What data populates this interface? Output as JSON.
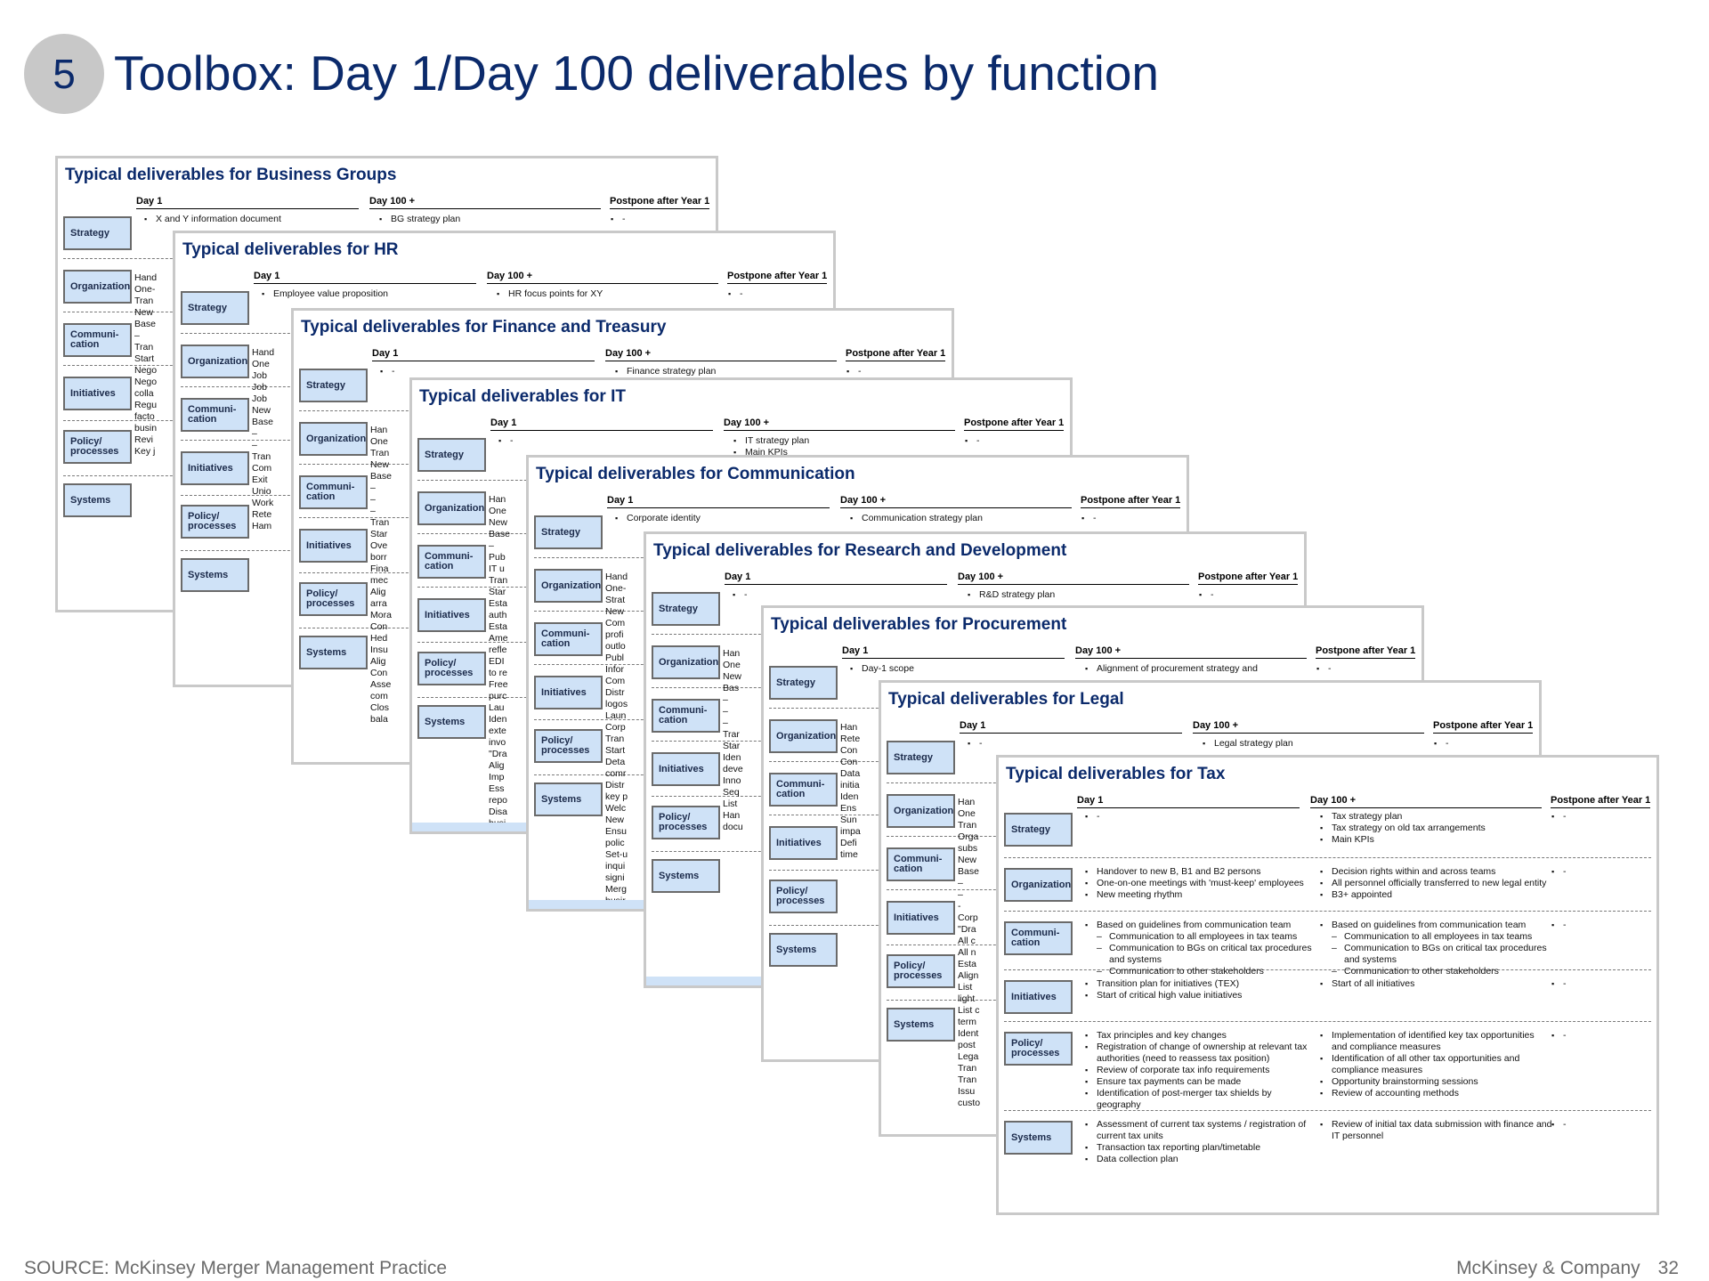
{
  "header": {
    "badge": "5",
    "title": "Toolbox: Day 1/Day 100 deliverables by function"
  },
  "columns": [
    "Day 1",
    "Day 100 +",
    "Postpone after Year 1"
  ],
  "row_labels": [
    "Strategy",
    "Organization",
    "Communi-\ncation",
    "Initiatives",
    "Policy/\nprocesses",
    "Systems"
  ],
  "sheets": [
    {
      "title": "Typical deliverables for Business Groups",
      "strategy": {
        "day1": "X and Y information document",
        "day100": "BG strategy plan",
        "year1": "-"
      },
      "stubs": [
        "Hand",
        "One-",
        "Tran",
        "New",
        "Base",
        "–",
        "Tran",
        "Start",
        "Nego",
        "Nego",
        "colla",
        "Regu",
        "facto",
        "busin",
        "Revi",
        "Key j"
      ]
    },
    {
      "title": "Typical deliverables for HR",
      "strategy": {
        "day1": "Employee value proposition",
        "day100": "HR focus points for XY",
        "year1": "-"
      },
      "stubs": [
        "Hand",
        "One",
        "Job",
        "Job",
        "Job",
        "New",
        "Base",
        "–",
        "–",
        "Tran",
        "Com",
        "Exit",
        "Unio",
        "Work",
        "Rete",
        "Ham"
      ]
    },
    {
      "title": "Typical deliverables for Finance and Treasury",
      "strategy": {
        "day1": "-",
        "day100": "Finance strategy plan",
        "year1": "-"
      },
      "stubs": [
        "Han",
        "One",
        "Tran",
        "New",
        "Base",
        "–",
        "–",
        "–",
        "Tran",
        "Star",
        "Ove",
        "borr",
        "Fina",
        "mec",
        "Alig",
        "arra",
        "Mora",
        "Con",
        "Hed",
        "Insu",
        "Alig",
        "Con",
        "Asse",
        "com",
        "Clos",
        "bala"
      ]
    },
    {
      "title": "Typical deliverables for IT",
      "strategy": {
        "day1": "-",
        "day100": "IT strategy plan",
        "day100b": "Main KPIs",
        "year1": "-"
      },
      "stubs": [
        "Han",
        "One",
        "New",
        "Base",
        "–",
        "Pub",
        "IT u",
        "Tran",
        "Star",
        "Esta",
        "auth",
        "Esta",
        "Ame",
        "refle",
        "EDI",
        "to re",
        "Free",
        "purc",
        "Lau",
        "Iden",
        "exte",
        "invo",
        "\"Dra",
        "Alig",
        "Imp",
        "Ess",
        "repo",
        "Disa",
        "busi",
        "Bac"
      ]
    },
    {
      "title": "Typical deliverables for Communication",
      "strategy": {
        "day1": "Corporate identity",
        "day100": "Communication strategy plan",
        "year1": "-"
      },
      "stubs": [
        "Hand",
        "One-",
        "Strat",
        "New",
        "Com",
        "profi",
        "outlo",
        "Publ",
        "Infor",
        "Com",
        "Distr",
        "logos",
        "Laun",
        "Corp",
        "Tran",
        "Start",
        "Deta",
        "comr",
        "Distr",
        "key p",
        "Welc",
        "New",
        "Ensu",
        "polic",
        "Set-u",
        "inqui",
        "signi",
        "Merg",
        "busir",
        "Ham"
      ]
    },
    {
      "title": "Typical deliverables for Research and Development",
      "strategy": {
        "day1": "-",
        "day100": "R&D strategy plan",
        "year1": "-"
      },
      "stubs": [
        "Han",
        "One",
        "New",
        "Bas",
        "–",
        "–",
        "–",
        "Trar",
        "Star",
        "Iden",
        "deve",
        "Inno",
        "Seq",
        "List",
        "Han",
        "docu"
      ]
    },
    {
      "title": "Typical deliverables for Procurement",
      "strategy": {
        "day1": "Day-1 scope",
        "day100": "Alignment of procurement strategy and",
        "year1": "-"
      },
      "stubs": [
        "Han",
        "Rete",
        "Con",
        "Con",
        "Data",
        "initia",
        "Iden",
        "Ens",
        "Sun",
        "impa",
        "Defi",
        "time"
      ]
    },
    {
      "title": "Typical deliverables for Legal",
      "strategy": {
        "day1": "-",
        "day100": "Legal strategy plan",
        "year1": "-"
      },
      "stubs": [
        "Han",
        "One",
        "Tran",
        "Orga",
        "subs",
        "New",
        "Base",
        "–",
        "–",
        "-",
        "Corp",
        "\"Dra",
        "All c",
        "All n",
        "Esta",
        "Align",
        "List",
        "light",
        "List c",
        "term",
        "Ident",
        "post",
        "Lega",
        "Tran",
        "Tran",
        "Issu",
        "custo"
      ]
    },
    {
      "title": "Typical deliverables for Tax",
      "rows": [
        {
          "day1": [
            "-"
          ],
          "day100": [
            "Tax strategy plan",
            "Tax strategy on old tax arrangements",
            "Main KPIs"
          ],
          "year1": [
            "-"
          ]
        },
        {
          "day1": [
            "Handover to new B, B1 and B2 persons",
            "One-on-one meetings with 'must-keep' employees",
            "New meeting rhythm"
          ],
          "day100": [
            "Decision rights within and across teams",
            "All personnel officially transferred to new legal entity",
            "B3+ appointed"
          ],
          "year1": [
            "-"
          ]
        },
        {
          "day1": [
            "Based on guidelines from communication team",
            "–Communication to all employees in tax teams",
            "–Communication to BGs on critical tax procedures and systems",
            "–Communication to other stakeholders"
          ],
          "day100": [
            "Based on guidelines from communication team",
            "–Communication to all employees in tax teams",
            "–Communication to BGs on critical tax procedures and systems",
            "–Communication to other stakeholders"
          ],
          "year1": [
            "-"
          ]
        },
        {
          "day1": [
            "Transition plan for initiatives (TEX)",
            "Start of critical high value initiatives"
          ],
          "day100": [
            "Start of all initiatives"
          ],
          "year1": [
            "-"
          ]
        },
        {
          "day1": [
            "Tax principles and key changes",
            "Registration of change of ownership at relevant tax authorities (need to reassess tax position)",
            "Review of corporate tax info requirements",
            "Ensure tax payments can be made",
            "Identification of post-merger tax shields by geography"
          ],
          "day100": [
            "Implementation of identified key tax opportunities and compliance measures",
            "Identification of all other tax opportunities and compliance measures",
            "Opportunity brainstorming sessions",
            "Review of accounting methods"
          ],
          "year1": [
            "-"
          ]
        },
        {
          "day1": [
            "Assessment of current tax systems / registration of current tax units",
            "Transaction tax reporting plan/timetable",
            "Data collection plan"
          ],
          "day100": [
            "Review of initial tax data submission with finance and IT personnel"
          ],
          "year1": [
            "-"
          ]
        }
      ]
    }
  ],
  "footer": {
    "source": "SOURCE: McKinsey Merger Management Practice",
    "company": "McKinsey & Company",
    "page": "32"
  }
}
